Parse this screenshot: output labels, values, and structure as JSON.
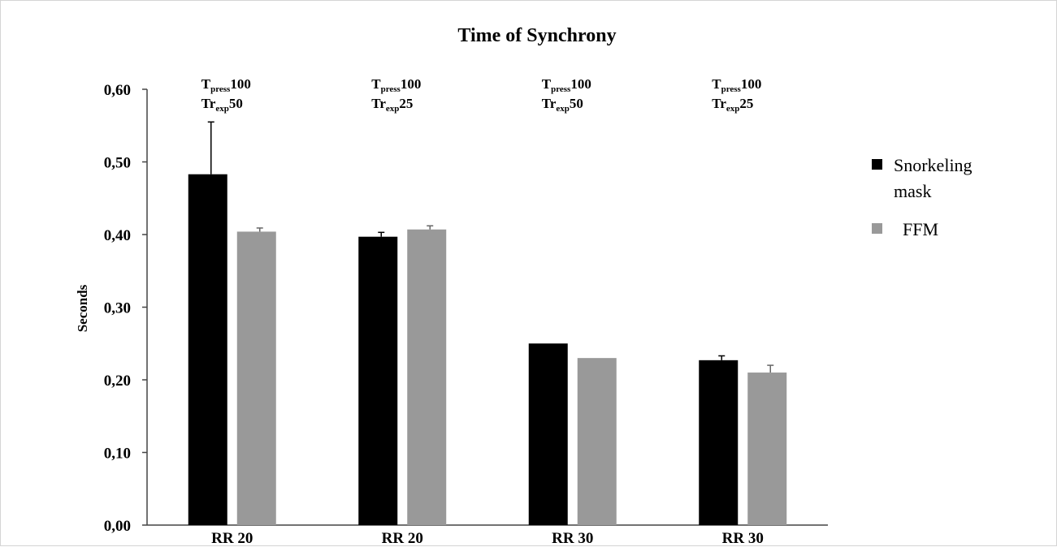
{
  "chart_data": {
    "type": "bar",
    "title": "Time of Synchrony",
    "xlabel": "",
    "ylabel": "Seconds",
    "ylim": [
      0,
      0.6
    ],
    "ytick_labels": [
      "0,00",
      "0,10",
      "0,20",
      "0,30",
      "0,40",
      "0,50",
      "0,60"
    ],
    "categories": [
      "RR 20",
      "RR 20",
      "RR 30",
      "RR 30"
    ],
    "series": [
      {
        "name": "Snorkeling mask",
        "color": "#000000",
        "values": [
          0.483,
          0.397,
          0.25,
          0.227
        ],
        "errors": [
          0.072,
          0.006,
          0.0,
          0.006
        ]
      },
      {
        "name": "FFM",
        "color": "#999999",
        "values": [
          0.404,
          0.407,
          0.23,
          0.21
        ],
        "errors": [
          0.005,
          0.005,
          0.0,
          0.01
        ]
      }
    ],
    "annotations": [
      {
        "line1": {
          "base": "T",
          "sub": "press",
          "tail": "100"
        },
        "line2": {
          "base": "Tr",
          "sub": "exp",
          "tail": "50"
        }
      },
      {
        "line1": {
          "base": "T",
          "sub": "press",
          "tail": "100"
        },
        "line2": {
          "base": "Tr",
          "sub": "exp",
          "tail": "25"
        }
      },
      {
        "line1": {
          "base": "T",
          "sub": "press",
          "tail": "100"
        },
        "line2": {
          "base": "Tr",
          "sub": "exp",
          "tail": "50"
        }
      },
      {
        "line1": {
          "base": "T",
          "sub": "press",
          "tail": "100"
        },
        "line2": {
          "base": "Tr",
          "sub": "exp",
          "tail": "25"
        }
      }
    ],
    "legend": {
      "placement": "right",
      "entries": [
        {
          "lines": [
            "Snorkeling",
            "mask"
          ],
          "color": "#000000"
        },
        {
          "lines": [
            "FFM"
          ],
          "color": "#999999"
        }
      ]
    },
    "grid": false
  }
}
